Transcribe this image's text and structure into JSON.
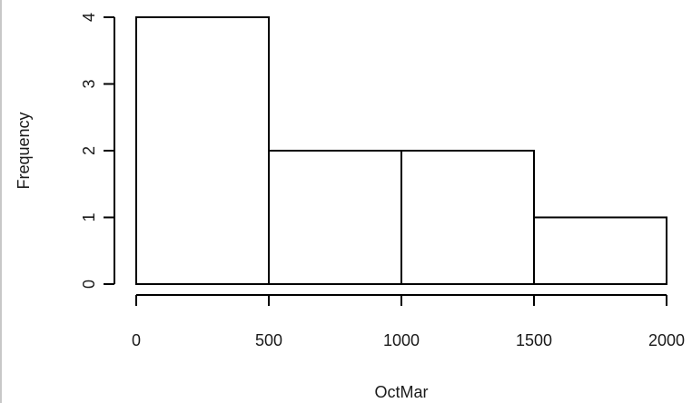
{
  "chart_data": {
    "type": "bar",
    "subtype": "histogram",
    "title": "",
    "xlabel": "OctMar",
    "ylabel": "Frequency",
    "bins": [
      {
        "start": 0,
        "end": 500,
        "count": 4
      },
      {
        "start": 500,
        "end": 1000,
        "count": 2
      },
      {
        "start": 1000,
        "end": 1500,
        "count": 2
      },
      {
        "start": 1500,
        "end": 2000,
        "count": 1
      }
    ],
    "xlim": [
      0,
      2000
    ],
    "ylim": [
      0,
      4
    ],
    "x_ticks": [
      0,
      500,
      1000,
      1500,
      2000
    ],
    "y_ticks": [
      0,
      1,
      2,
      3,
      4
    ],
    "bar_fill": "#ffffff",
    "bar_stroke": "#000000",
    "grid": false,
    "legend": "none"
  }
}
